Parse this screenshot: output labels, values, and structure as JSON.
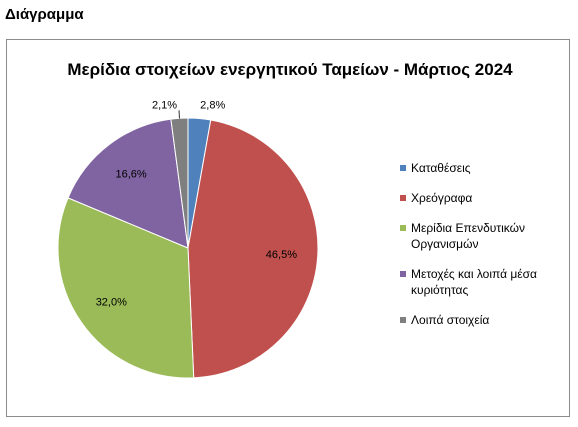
{
  "page": {
    "heading": "Διάγραμμα"
  },
  "chart_data": {
    "type": "pie",
    "title": "Μερίδια στοιχείων ενεργητικού Ταμείων -  Μάρτιος 2024",
    "categories": [
      "Καταθέσεις",
      "Χρεόγραφα",
      "Μερίδια Επενδυτικών Οργανισμών",
      "Μετοχές και λοιπά μέσα κυριότητας",
      "Λοιπά στοιχεία"
    ],
    "values": [
      2.8,
      46.5,
      32.0,
      16.6,
      2.1
    ],
    "data_labels": [
      "2,8%",
      "46,5%",
      "32,0%",
      "16,6%",
      "2,1%"
    ],
    "colors": [
      "#4f81bd",
      "#c0504d",
      "#9bbb59",
      "#8064a2",
      "#7f7f7f"
    ],
    "legend": "right"
  }
}
